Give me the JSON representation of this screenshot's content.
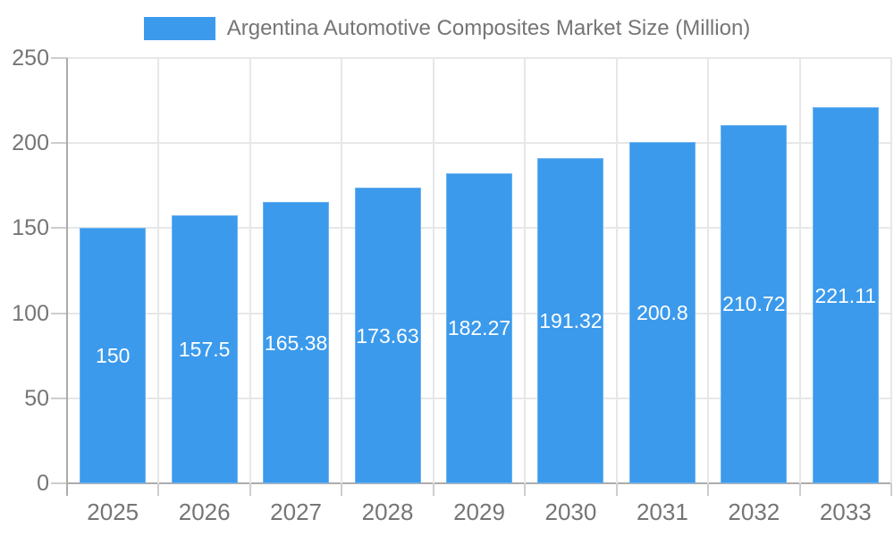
{
  "page": {
    "background": "#ffffff"
  },
  "legend": {
    "label": "Argentina Automotive Composites Market Size (Million)",
    "swatch_color": "#3B9AEC",
    "text_color": "#757575"
  },
  "chart_data": {
    "type": "bar",
    "title": "Argentina Automotive Composites Market Size (Million)",
    "categories": [
      "2025",
      "2026",
      "2027",
      "2028",
      "2029",
      "2030",
      "2031",
      "2032",
      "2033"
    ],
    "values": [
      150,
      157.5,
      165.38,
      173.63,
      182.27,
      191.32,
      200.8,
      210.72,
      221.11
    ],
    "value_labels": [
      "150",
      "157.5",
      "165.38",
      "173.63",
      "182.27",
      "191.32",
      "200.8",
      "210.72",
      "221.11"
    ],
    "xlabel": "",
    "ylabel": "",
    "ylim": [
      0,
      250
    ],
    "yticks": [
      0,
      50,
      100,
      150,
      200,
      250
    ],
    "ytick_labels": [
      "0",
      "50",
      "100",
      "150",
      "200",
      "250"
    ],
    "grid": true,
    "legend_position": "top",
    "value_label_position": "inside-center",
    "colors": {
      "bar": "#3B9AEC",
      "bar_label": "#FFFFFF",
      "axis_text": "#757575",
      "gridline": "#E7E7E7",
      "axis_line": "#ACACAC",
      "tick": "#CDCDCD"
    }
  }
}
